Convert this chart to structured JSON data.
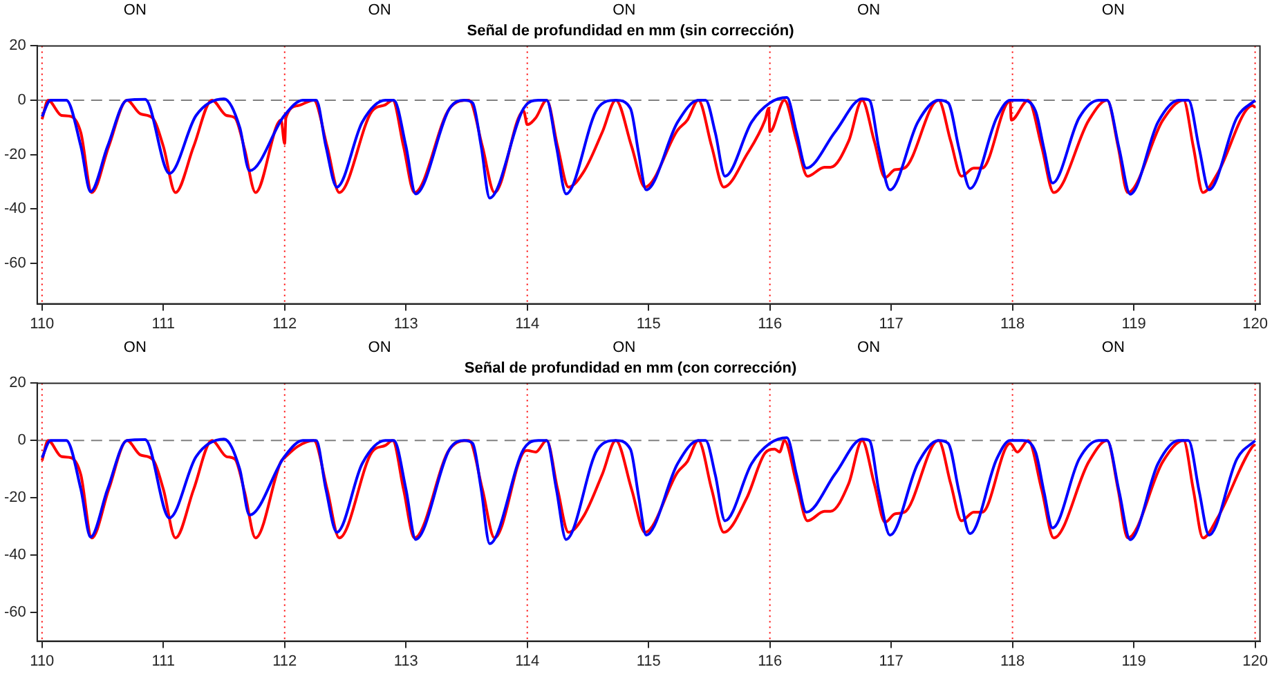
{
  "chart_data": [
    {
      "type": "line",
      "title": "Señal de profundidad en mm (sin corrección)",
      "xlim": [
        109.96,
        120.04
      ],
      "ylim": [
        -75,
        20
      ],
      "xticks": [
        110,
        111,
        112,
        113,
        114,
        115,
        116,
        117,
        118,
        119,
        120
      ],
      "yticks": [
        -60,
        -40,
        -20,
        0,
        20
      ],
      "annotations": [
        "ON",
        "ON",
        "ON",
        "ON",
        "ON"
      ],
      "ref_lines": [
        {
          "axis": "y",
          "value": 0,
          "color": "#808080",
          "line_style": "dashed"
        },
        {
          "axis": "x",
          "value": 110,
          "color": "#ff0000",
          "line_style": "dotted"
        },
        {
          "axis": "x",
          "value": 112,
          "color": "#ff0000",
          "line_style": "dotted"
        },
        {
          "axis": "x",
          "value": 114,
          "color": "#ff0000",
          "line_style": "dotted"
        },
        {
          "axis": "x",
          "value": 116,
          "color": "#ff0000",
          "line_style": "dotted"
        },
        {
          "axis": "x",
          "value": 118,
          "color": "#ff0000",
          "line_style": "dotted"
        },
        {
          "axis": "x",
          "value": 120,
          "color": "#ff0000",
          "line_style": "dotted"
        }
      ],
      "series": [
        {
          "color": "#0000ff",
          "x": [
            110,
            110.07,
            110.2,
            110.32,
            110.4,
            110.54,
            110.7,
            110.85,
            111.05,
            111.27,
            111.5,
            111.63,
            111.71,
            112.0,
            112.15,
            112.26,
            112.34,
            112.43,
            112.64,
            112.83,
            112.9,
            113.0,
            113.08,
            113.36,
            113.48,
            113.55,
            113.62,
            113.69,
            113.97,
            114.09,
            114.16,
            114.24,
            114.32,
            114.58,
            114.73,
            114.85,
            114.92,
            114.98,
            115.24,
            115.41,
            115.47,
            115.55,
            115.63,
            115.85,
            116.0,
            116.14,
            116.22,
            116.3,
            116.54,
            116.76,
            116.82,
            116.9,
            116.99,
            117.22,
            117.39,
            117.47,
            117.56,
            117.65,
            117.87,
            117.98,
            118.08,
            118.19,
            118.26,
            118.33,
            118.55,
            118.71,
            118.78,
            118.88,
            118.97,
            119.2,
            119.37,
            119.45,
            119.54,
            119.62,
            119.85,
            120.0
          ],
          "values": [
            -6,
            0,
            0,
            -17,
            -33.7,
            -17,
            0,
            0.3,
            -27,
            -5.6,
            0.5,
            -10,
            -26,
            -5.5,
            0,
            0,
            -17,
            -32,
            -8,
            0,
            0,
            -17,
            -34.5,
            -3,
            0,
            -1,
            -17,
            -36,
            -3,
            0,
            0,
            -17,
            -34.5,
            -3,
            0,
            -3,
            -20,
            -33,
            -8,
            0,
            0,
            -12,
            -28,
            -8,
            -1,
            1,
            -12,
            -25,
            -11.5,
            0.5,
            0,
            -18,
            -33,
            -8,
            0,
            -1,
            -18,
            -32.5,
            -6.4,
            0,
            0,
            -4,
            -18,
            -30.5,
            -6.4,
            0,
            0,
            -18,
            -34.6,
            -8,
            0,
            0,
            -18,
            -33,
            -6.4,
            0
          ]
        },
        {
          "color": "#ff0000",
          "x": [
            110,
            110.05,
            110.16,
            110.24,
            110.32,
            110.41,
            110.55,
            110.7,
            110.81,
            110.91,
            111.0,
            111.1,
            111.25,
            111.4,
            111.52,
            111.59,
            111.67,
            111.76,
            111.97,
            112.0,
            112.01,
            112.11,
            112.24,
            112.35,
            112.45,
            112.72,
            112.83,
            112.89,
            112.98,
            113.07,
            113.36,
            113.52,
            113.63,
            113.73,
            113.97,
            114.0,
            114.07,
            114.16,
            114.25,
            114.34,
            114.47,
            114.62,
            114.73,
            114.86,
            114.97,
            115.24,
            115.32,
            115.41,
            115.52,
            115.62,
            115.81,
            115.96,
            115.99,
            116.0,
            116.12,
            116.22,
            116.31,
            116.45,
            116.5,
            116.65,
            116.76,
            116.86,
            116.95,
            117.03,
            117.11,
            117.39,
            117.49,
            117.58,
            117.68,
            117.75,
            117.98,
            117.99,
            118.13,
            118.24,
            118.34,
            118.63,
            118.78,
            118.87,
            118.95,
            119.24,
            119.41,
            119.49,
            119.57,
            119.69,
            119.98,
            120.0
          ],
          "values": [
            -7,
            0,
            -5.6,
            -6,
            -12,
            -34,
            -17,
            0,
            -5,
            -6.5,
            -17,
            -34,
            -17,
            0,
            -5.6,
            -6.5,
            -18,
            -34,
            -7.3,
            -16,
            -6.5,
            -2,
            0,
            -17,
            -34,
            -4,
            -1.7,
            0,
            -17,
            -34,
            -3,
            0,
            -17,
            -34,
            -4,
            -9,
            -6.5,
            0,
            -17,
            -32,
            -26,
            -11.6,
            0,
            -17,
            -32,
            -11,
            -7.3,
            0,
            -17,
            -32,
            -20,
            -7.3,
            -3,
            -11.6,
            0,
            -15,
            -28,
            -24.7,
            -24.7,
            -15,
            0,
            -15,
            -28.5,
            -25.6,
            -25,
            0,
            -15,
            -28,
            -25,
            -25,
            -0.3,
            -7.3,
            0,
            -17,
            -34,
            -7.3,
            0,
            -17,
            -34,
            -7.3,
            0,
            -17,
            -34,
            -27,
            -2,
            -2.6
          ]
        }
      ]
    },
    {
      "type": "line",
      "title": "Señal de profundidad en mm (con corrección)",
      "xlim": [
        109.96,
        120.04
      ],
      "ylim": [
        -70,
        20
      ],
      "xticks": [
        110,
        111,
        112,
        113,
        114,
        115,
        116,
        117,
        118,
        119,
        120
      ],
      "yticks": [
        -60,
        -40,
        -20,
        0,
        20
      ],
      "annotations": [
        "ON",
        "ON",
        "ON",
        "ON",
        "ON"
      ],
      "ref_lines": [
        {
          "axis": "y",
          "value": 0,
          "color": "#808080",
          "line_style": "dashed"
        },
        {
          "axis": "x",
          "value": 110,
          "color": "#ff0000",
          "line_style": "dotted"
        },
        {
          "axis": "x",
          "value": 112,
          "color": "#ff0000",
          "line_style": "dotted"
        },
        {
          "axis": "x",
          "value": 114,
          "color": "#ff0000",
          "line_style": "dotted"
        },
        {
          "axis": "x",
          "value": 116,
          "color": "#ff0000",
          "line_style": "dotted"
        },
        {
          "axis": "x",
          "value": 118,
          "color": "#ff0000",
          "line_style": "dotted"
        },
        {
          "axis": "x",
          "value": 120,
          "color": "#ff0000",
          "line_style": "dotted"
        }
      ],
      "series": [
        {
          "color": "#0000ff",
          "x": [
            110,
            110.07,
            110.2,
            110.32,
            110.4,
            110.54,
            110.7,
            110.85,
            111.05,
            111.27,
            111.5,
            111.63,
            111.71,
            112.0,
            112.15,
            112.26,
            112.34,
            112.43,
            112.64,
            112.83,
            112.9,
            113.0,
            113.08,
            113.36,
            113.48,
            113.55,
            113.62,
            113.69,
            113.97,
            114.09,
            114.16,
            114.24,
            114.32,
            114.58,
            114.73,
            114.85,
            114.92,
            114.98,
            115.24,
            115.41,
            115.47,
            115.55,
            115.63,
            115.85,
            116.0,
            116.14,
            116.22,
            116.3,
            116.54,
            116.76,
            116.82,
            116.9,
            116.99,
            117.22,
            117.39,
            117.47,
            117.56,
            117.65,
            117.87,
            117.98,
            118.08,
            118.19,
            118.26,
            118.33,
            118.55,
            118.71,
            118.78,
            118.88,
            118.97,
            119.2,
            119.37,
            119.45,
            119.54,
            119.62,
            119.85,
            120.0
          ],
          "values": [
            -6,
            0,
            0,
            -17,
            -33.7,
            -17,
            0,
            0.3,
            -27,
            -5.6,
            0.5,
            -10,
            -26,
            -5.5,
            0,
            0,
            -17,
            -32,
            -8,
            0,
            0,
            -17,
            -34.5,
            -3,
            0,
            -1,
            -17,
            -36,
            -3,
            0,
            0,
            -17,
            -34.5,
            -3,
            0,
            -3,
            -20,
            -33,
            -8,
            0,
            0,
            -12,
            -28,
            -8,
            -1,
            1,
            -12,
            -25,
            -11.5,
            0.5,
            0,
            -18,
            -33,
            -8,
            0,
            -1,
            -18,
            -32.5,
            -6.4,
            0,
            0,
            -4,
            -18,
            -30.5,
            -6.4,
            0,
            0,
            -18,
            -34.6,
            -8,
            0,
            0,
            -18,
            -33,
            -6.4,
            0
          ]
        },
        {
          "color": "#ff0000",
          "x": [
            110,
            110.05,
            110.16,
            110.24,
            110.32,
            110.41,
            110.55,
            110.7,
            110.81,
            110.91,
            111.0,
            111.1,
            111.25,
            111.4,
            111.52,
            111.59,
            111.67,
            111.76,
            111.97,
            112.0,
            112.11,
            112.24,
            112.35,
            112.45,
            112.72,
            112.83,
            112.89,
            112.98,
            113.07,
            113.36,
            113.52,
            113.63,
            113.73,
            113.97,
            114.0,
            114.07,
            114.16,
            114.25,
            114.34,
            114.47,
            114.62,
            114.73,
            114.86,
            114.97,
            115.24,
            115.32,
            115.41,
            115.52,
            115.62,
            115.81,
            115.96,
            116.04,
            116.08,
            116.12,
            116.22,
            116.31,
            116.45,
            116.5,
            116.65,
            116.76,
            116.86,
            116.95,
            117.03,
            117.11,
            117.39,
            117.49,
            117.58,
            117.68,
            117.75,
            117.98,
            118.04,
            118.13,
            118.24,
            118.34,
            118.63,
            118.78,
            118.87,
            118.95,
            119.24,
            119.41,
            119.49,
            119.57,
            119.69,
            119.98,
            120.0
          ],
          "values": [
            -7,
            0,
            -5.6,
            -6,
            -12,
            -34,
            -17,
            0,
            -5,
            -6.5,
            -17,
            -34,
            -17,
            0,
            -5.6,
            -6.5,
            -18,
            -34,
            -7.3,
            -6,
            -2,
            0,
            -17,
            -34,
            -4,
            -1.7,
            0,
            -17,
            -34,
            -3,
            0,
            -17,
            -34,
            -4,
            -3.5,
            -4,
            0,
            -17,
            -32,
            -26,
            -11.6,
            0,
            -17,
            -32,
            -11,
            -7.3,
            0,
            -17,
            -32,
            -20,
            -4.4,
            -3,
            -4,
            0,
            -15,
            -28,
            -24.7,
            -24.7,
            -15,
            0,
            -15,
            -28.5,
            -25.6,
            -25,
            0,
            -15,
            -28,
            -25,
            -25,
            -1,
            -4,
            0,
            -17,
            -34,
            -7.3,
            0,
            -17,
            -34,
            -7.3,
            0,
            -17,
            -34,
            -27,
            -2,
            -1.5
          ]
        }
      ]
    }
  ]
}
